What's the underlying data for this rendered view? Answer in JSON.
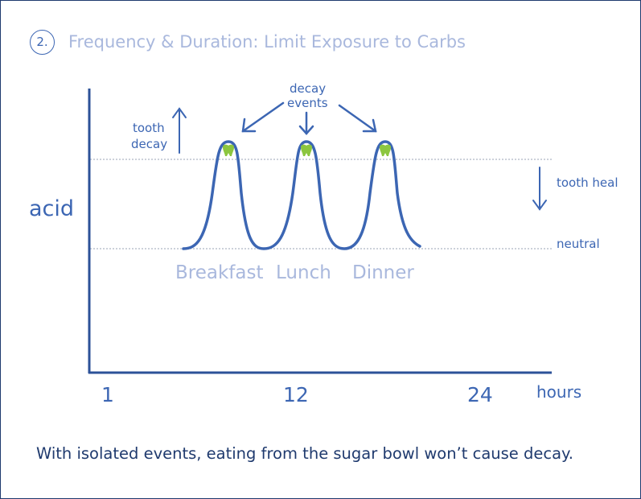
{
  "title": {
    "number": "2.",
    "text": "Frequency & Duration: Limit Exposure to Carbs"
  },
  "diagram": {
    "y_axis_label": "acid",
    "x_axis_label": "hours",
    "x_ticks": [
      "1",
      "12",
      "24"
    ],
    "threshold_labels": {
      "upper_up": [
        "tooth",
        "decay"
      ],
      "upper_down": "tooth heal",
      "lower": "neutral"
    },
    "annotation": [
      "decay",
      "events"
    ],
    "meals": [
      "Breakfast",
      "Lunch",
      "Dinner"
    ],
    "decay_icon": "tooth-icon"
  },
  "caption": "With isolated events, eating from the sugar bowl won’t cause decay.",
  "colors": {
    "curve": "#3c66b3",
    "axis": "#2c5298",
    "title": "#a9b8dd",
    "meal_label": "#a9b8dd",
    "tooth": "#8cc63f",
    "caption": "#1f3a6e"
  }
}
